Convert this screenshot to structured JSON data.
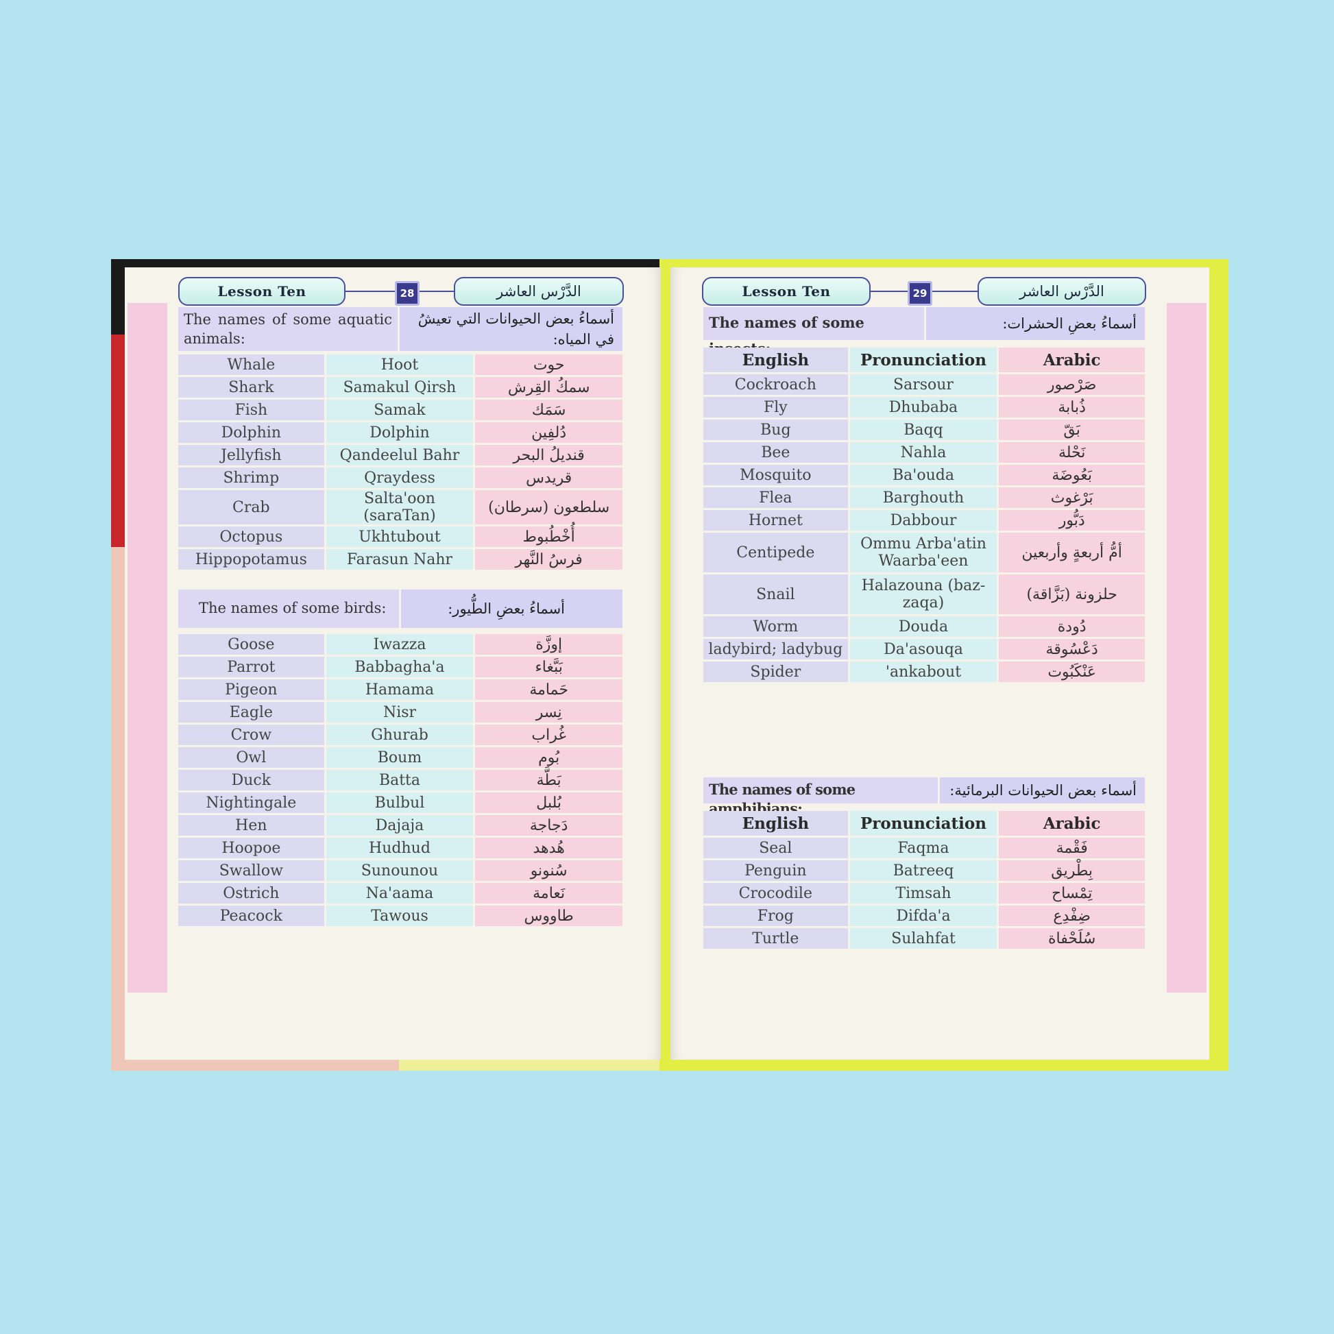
{
  "left_page": {
    "lesson_en": "Lesson Ten",
    "lesson_ar": "الدَّرْس العاشر",
    "page_number": "28",
    "aquatic": {
      "title_en": "The names of some aquatic animals:",
      "title_ar": "أسماءُ بعض الحيوانات التي تعيشُ في المياه:",
      "rows": [
        [
          "Whale",
          "Hoot",
          "حوت"
        ],
        [
          "Shark",
          "Samakul Qirsh",
          "سمكُ القِرش"
        ],
        [
          "Fish",
          "Samak",
          "سَمَك"
        ],
        [
          "Dolphin",
          "Dolphin",
          "دُلفِين"
        ],
        [
          "Jellyfish",
          "Qandeelul Bahr",
          "قنديلُ البحر"
        ],
        [
          "Shrimp",
          "Qraydess",
          "قريدس"
        ],
        [
          "Crab",
          "Salta'oon (saraTan)",
          "سلطعون (سرطان)"
        ],
        [
          "Octopus",
          "Ukhtubout",
          "أُخْطُبوط"
        ],
        [
          "Hippopotamus",
          "Farasun Nahr",
          "فرسُ النَّهر"
        ]
      ]
    },
    "birds": {
      "title_en": "The names of some birds:",
      "title_ar": "أسماءُ بعضِ الطُّيور:",
      "rows": [
        [
          "Goose",
          "Iwazza",
          "إوزَّة"
        ],
        [
          "Parrot",
          "Babbagha'a",
          "بَبَّغاء"
        ],
        [
          "Pigeon",
          "Hamama",
          "حَمامة"
        ],
        [
          "Eagle",
          "Nisr",
          "نِسر"
        ],
        [
          "Crow",
          "Ghurab",
          "غُراب"
        ],
        [
          "Owl",
          "Boum",
          "بُوم"
        ],
        [
          "Duck",
          "Batta",
          "بَطَّة"
        ],
        [
          "Nightingale",
          "Bulbul",
          "بُلبل"
        ],
        [
          "Hen",
          "Dajaja",
          "دَجاجة"
        ],
        [
          "Hoopoe",
          "Hudhud",
          "هُدهد"
        ],
        [
          "Swallow",
          "Sunounou",
          "سُنونو"
        ],
        [
          "Ostrich",
          "Na'aama",
          "نَعامة"
        ],
        [
          "Peacock",
          "Tawous",
          "طاووس"
        ]
      ]
    }
  },
  "right_page": {
    "lesson_en": "Lesson Ten",
    "lesson_ar": "الدَّرْس العاشر",
    "page_number": "29",
    "insects": {
      "title_en": "The names of some insects:",
      "title_ar": "أسماءُ بعضِ الحشرات:",
      "headers": [
        "English",
        "Pronunciation",
        "Arabic"
      ],
      "rows": [
        [
          "Cockroach",
          "Sarsour",
          "صَرْصور"
        ],
        [
          "Fly",
          "Dhubaba",
          "ذُبابة"
        ],
        [
          "Bug",
          "Baqq",
          "بَقّ"
        ],
        [
          "Bee",
          "Nahla",
          "نَحْلة"
        ],
        [
          "Mosquito",
          "Ba'ouda",
          "بَعُوضَة"
        ],
        [
          "Flea",
          "Barghouth",
          "بَرْغوث"
        ],
        [
          "Hornet",
          "Dabbour",
          "دَبُّور"
        ],
        [
          "Centipede",
          "Ommu Arba'atin Waarba'een",
          "أمُّ أربعةٍ وأربعين"
        ],
        [
          "Snail",
          "Halazouna (baz-zaqa)",
          "حلزونة (بَزَّاقة)"
        ],
        [
          "Worm",
          "Douda",
          "دُودة"
        ],
        [
          "ladybird; ladybug",
          "Da'asouqa",
          "دَعْسُوقة"
        ],
        [
          "Spider",
          "'ankabout",
          "عَنْكَبُوت"
        ]
      ]
    },
    "amphibians": {
      "title_en": "The names of some amphibians:",
      "title_ar": "أسماء بعض الحيوانات البرمائية:",
      "headers": [
        "English",
        "Pronunciation",
        "Arabic"
      ],
      "rows": [
        [
          "Seal",
          "Faqma",
          "فَقْمة"
        ],
        [
          "Penguin",
          "Batreeq",
          "بِطْريق"
        ],
        [
          "Crocodile",
          "Timsah",
          "تِمْساح"
        ],
        [
          "Frog",
          "Difda'a",
          "ضِفْدِع"
        ],
        [
          "Turtle",
          "Sulahfat",
          "سُلَحْفاة"
        ]
      ]
    }
  },
  "colors": {
    "background": "#b3e4ef",
    "page": "#f6f4ea",
    "english_column": "#dcdaf1",
    "pronunciation_column": "#d7f0f1",
    "arabic_column": "#f7d3df",
    "right_cover": "#e3ee44",
    "left_cover_stripe": "#c8262b"
  }
}
